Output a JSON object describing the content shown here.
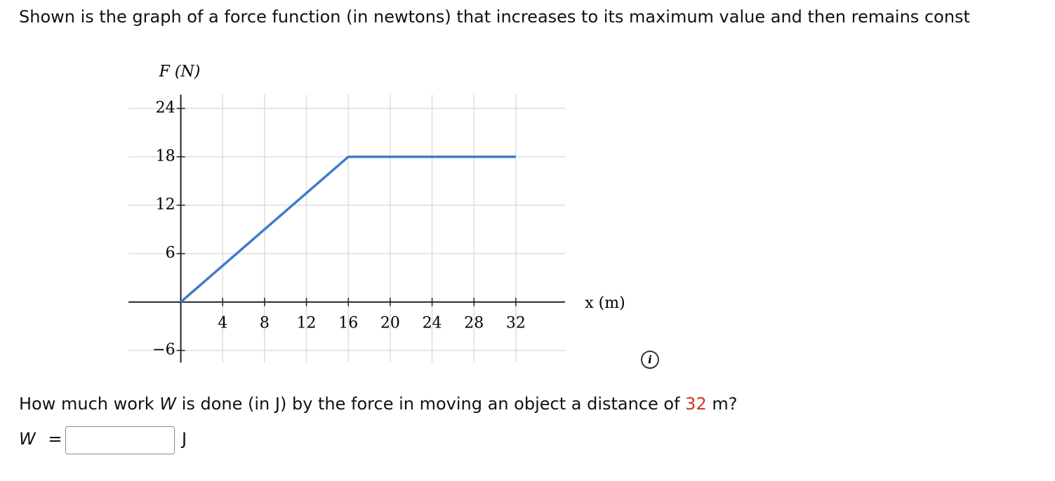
{
  "intro": "Shown is the graph of a force function (in newtons) that increases to its maximum value and then remains const",
  "chart_data": {
    "type": "line",
    "ylabel": "F (N)",
    "xlabel": "x (m)",
    "x": [
      0,
      16,
      32
    ],
    "values": [
      0,
      18,
      18
    ],
    "color": "#3d7cc9",
    "xlim": [
      -5,
      36.7
    ],
    "ylim": [
      -7.5,
      25.7
    ],
    "xticks": [
      4,
      8,
      12,
      16,
      20,
      24,
      28,
      32
    ],
    "yticks": [
      {
        "value": -6,
        "label": "−6"
      },
      6,
      12,
      18,
      24
    ],
    "grid": true
  },
  "question": {
    "parts": [
      "How much work ",
      "W",
      " is done (in J) by the force in moving an object a distance of ",
      "32",
      " m?"
    ]
  },
  "answer": {
    "variable": "W",
    "equals": "=",
    "unit": "J"
  }
}
